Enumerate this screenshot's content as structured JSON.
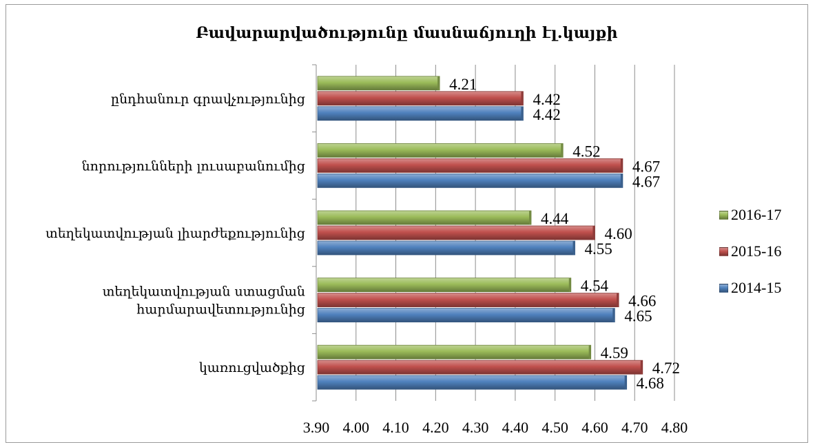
{
  "chart_data": {
    "type": "bar",
    "orientation": "horizontal",
    "title": "Բավարարվածությունը մասնաճյուղի  էլ.կայքի",
    "categories": [
      "ընդհանուր գրավչությունից",
      "նորությունների  լուսաբանումից",
      "տեղեկատվության լիարժեքությունից",
      "տեղեկատվության ստացման հարմարավետությունից",
      "կառուցվածքից"
    ],
    "category_lines": [
      [
        "ընդհանուր գրավչությունից"
      ],
      [
        "նորությունների  լուսաբանումից"
      ],
      [
        "տեղեկատվության լիարժեքությունից"
      ],
      [
        "տեղեկատվության ստացման",
        "հարմարավետությունից"
      ],
      [
        "կառուցվածքից"
      ]
    ],
    "series": [
      {
        "name": "2016-17",
        "color": "#9bbb59",
        "values": [
          4.21,
          4.52,
          4.44,
          4.54,
          4.59
        ],
        "labels": [
          "4.21",
          "4.52",
          "4.44",
          "4.54",
          "4.59"
        ]
      },
      {
        "name": "2015-16",
        "color": "#c0504d",
        "values": [
          4.42,
          4.67,
          4.6,
          4.66,
          4.72
        ],
        "labels": [
          "4.42",
          "4.67",
          "4.60",
          "4.66",
          "4.72"
        ]
      },
      {
        "name": "2014-15",
        "color": "#4f81bd",
        "values": [
          4.42,
          4.67,
          4.55,
          4.65,
          4.68
        ],
        "labels": [
          "4.42",
          "4.67",
          "4.55",
          "4.65",
          "4.68"
        ]
      }
    ],
    "xlim": [
      3.9,
      4.8
    ],
    "x_ticks": [
      "3.90",
      "4.00",
      "4.10",
      "4.20",
      "4.30",
      "4.40",
      "4.50",
      "4.60",
      "4.70",
      "4.80"
    ],
    "xlabel": "",
    "ylabel": "",
    "grid": true,
    "legend_position": "right"
  }
}
